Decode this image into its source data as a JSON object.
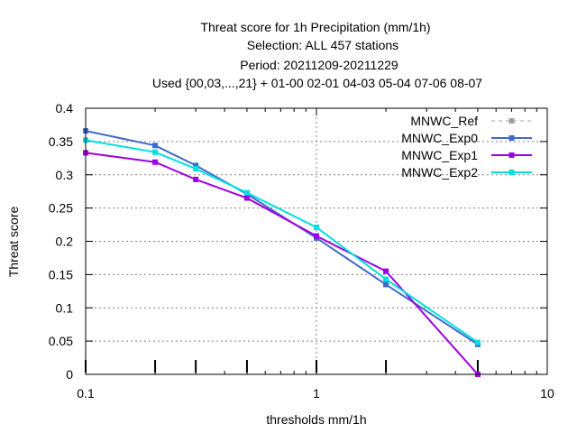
{
  "chart_data": {
    "type": "line",
    "title_lines": [
      "Threat score  for 1h Precipitation (mm/1h)",
      "Selection: ALL    457 stations",
      "Period: 20211209-20211229",
      "Used {00,03,...,21} + 01-00 02-01 04-03 05-04 07-06 08-07"
    ],
    "xlabel": "thresholds mm/1h",
    "ylabel": "Threat score",
    "x_scale": "log",
    "xlim": [
      0.1,
      10
    ],
    "ylim": [
      0,
      0.4
    ],
    "x_ticks": [
      {
        "value": 0.1,
        "label": "0.1"
      },
      {
        "value": 1,
        "label": "1"
      },
      {
        "value": 10,
        "label": "10"
      }
    ],
    "y_ticks": [
      {
        "value": 0,
        "label": "0"
      },
      {
        "value": 0.05,
        "label": "0.05"
      },
      {
        "value": 0.1,
        "label": "0.1"
      },
      {
        "value": 0.15,
        "label": "0.15"
      },
      {
        "value": 0.2,
        "label": "0.2"
      },
      {
        "value": 0.25,
        "label": "0.25"
      },
      {
        "value": 0.3,
        "label": "0.3"
      },
      {
        "value": 0.35,
        "label": "0.35"
      },
      {
        "value": 0.4,
        "label": "0.4"
      }
    ],
    "threshold_marks": [
      0.1,
      0.2,
      0.3,
      0.5,
      1,
      2,
      5
    ],
    "grid": true,
    "legend_position": "top-right",
    "series": [
      {
        "name": "MNWC_Ref",
        "color": "#a0a0a0",
        "dashed": true,
        "x": [],
        "y": []
      },
      {
        "name": "MNWC_Exp0",
        "color": "#4169c8",
        "dashed": false,
        "x": [
          0.1,
          0.2,
          0.3,
          0.5,
          1,
          2,
          5
        ],
        "y": [
          0.366,
          0.344,
          0.314,
          0.271,
          0.205,
          0.135,
          0.045
        ]
      },
      {
        "name": "MNWC_Exp1",
        "color": "#a000e0",
        "dashed": false,
        "x": [
          0.1,
          0.2,
          0.3,
          0.5,
          1,
          2,
          5
        ],
        "y": [
          0.333,
          0.319,
          0.293,
          0.265,
          0.208,
          0.155,
          0.0
        ]
      },
      {
        "name": "MNWC_Exp2",
        "color": "#00e0e0",
        "dashed": false,
        "x": [
          0.1,
          0.2,
          0.3,
          0.5,
          1,
          2,
          5
        ],
        "y": [
          0.352,
          0.334,
          0.309,
          0.273,
          0.221,
          0.143,
          0.048
        ]
      }
    ]
  }
}
